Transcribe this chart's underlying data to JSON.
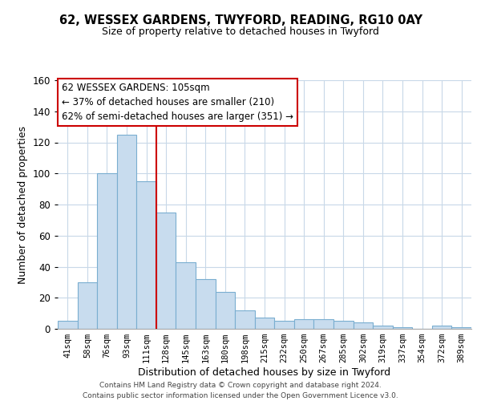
{
  "title1": "62, WESSEX GARDENS, TWYFORD, READING, RG10 0AY",
  "title2": "Size of property relative to detached houses in Twyford",
  "xlabel": "Distribution of detached houses by size in Twyford",
  "ylabel": "Number of detached properties",
  "bar_labels": [
    "41sqm",
    "58sqm",
    "76sqm",
    "93sqm",
    "111sqm",
    "128sqm",
    "145sqm",
    "163sqm",
    "180sqm",
    "198sqm",
    "215sqm",
    "232sqm",
    "250sqm",
    "267sqm",
    "285sqm",
    "302sqm",
    "319sqm",
    "337sqm",
    "354sqm",
    "372sqm",
    "389sqm"
  ],
  "bar_values": [
    5,
    30,
    100,
    125,
    95,
    75,
    43,
    32,
    24,
    12,
    7,
    5,
    6,
    6,
    5,
    4,
    2,
    1,
    0,
    2,
    1
  ],
  "bar_color": "#c8dcee",
  "bar_edge_color": "#7aaed0",
  "vline_color": "#cc0000",
  "annotation_title": "62 WESSEX GARDENS: 105sqm",
  "annotation_line1": "← 37% of detached houses are smaller (210)",
  "annotation_line2": "62% of semi-detached houses are larger (351) →",
  "box_edge_color": "#cc0000",
  "ylim": [
    0,
    160
  ],
  "yticks": [
    0,
    20,
    40,
    60,
    80,
    100,
    120,
    140,
    160
  ],
  "footer1": "Contains HM Land Registry data © Crown copyright and database right 2024.",
  "footer2": "Contains public sector information licensed under the Open Government Licence v3.0."
}
